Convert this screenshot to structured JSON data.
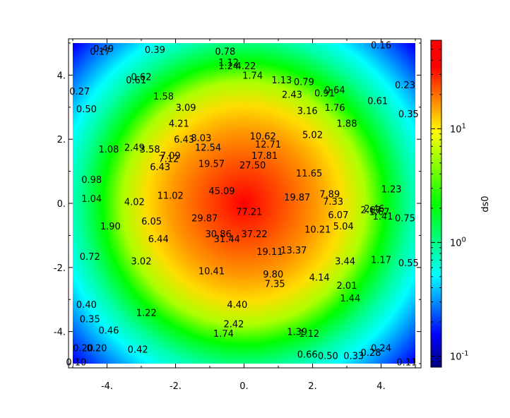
{
  "chart_data": {
    "type": "heatmap",
    "title": "",
    "xlabel": "",
    "ylabel": "",
    "colorbar_label": "ds0",
    "colorbar_scale": "log",
    "colorbar_range": [
      0.08,
      60
    ],
    "colormap": [
      "#00007f",
      "#0000ff",
      "#00ffff",
      "#00ff00",
      "#ffff00",
      "#ff0000",
      "#ff0000"
    ],
    "xlim": [
      -5,
      5
    ],
    "ylim": [
      -5,
      5
    ],
    "field_center": [
      0,
      0
    ],
    "x_ticks": [
      {
        "value": -4,
        "label": "-4."
      },
      {
        "value": -2,
        "label": "-2."
      },
      {
        "value": 0,
        "label": "0."
      },
      {
        "value": 2,
        "label": "2."
      },
      {
        "value": 4,
        "label": "4."
      }
    ],
    "y_ticks": [
      {
        "value": -4,
        "label": "-4."
      },
      {
        "value": -2,
        "label": "-2."
      },
      {
        "value": 0,
        "label": "0."
      },
      {
        "value": 2,
        "label": "2."
      },
      {
        "value": 4,
        "label": "4."
      }
    ],
    "colorbar_ticks": [
      {
        "value": 10,
        "base": "10",
        "exp": "1"
      },
      {
        "value": 1,
        "base": "10",
        "exp": "0"
      },
      {
        "value": 0.1,
        "base": "10",
        "exp": "-1"
      }
    ],
    "points": [
      {
        "x": -4.1,
        "y": 4.84,
        "label": "0.49"
      },
      {
        "x": -4.2,
        "y": 4.75,
        "label": "0.17"
      },
      {
        "x": -2.6,
        "y": 4.8,
        "label": "0.39"
      },
      {
        "x": -0.55,
        "y": 4.75,
        "label": "0.78"
      },
      {
        "x": -0.45,
        "y": 4.4,
        "label": "1.12"
      },
      {
        "x": -0.45,
        "y": 4.3,
        "label": "1.24"
      },
      {
        "x": 0.05,
        "y": 4.3,
        "label": "4.22"
      },
      {
        "x": 0.25,
        "y": 4.0,
        "label": "1.74"
      },
      {
        "x": 1.75,
        "y": 3.8,
        "label": "0.79"
      },
      {
        "x": 1.1,
        "y": 3.85,
        "label": "1.13"
      },
      {
        "x": -3.0,
        "y": 3.95,
        "label": "0.62"
      },
      {
        "x": -3.15,
        "y": 3.85,
        "label": "0.61"
      },
      {
        "x": -4.8,
        "y": 3.5,
        "label": "0.27"
      },
      {
        "x": -2.35,
        "y": 3.35,
        "label": "1.58"
      },
      {
        "x": 1.4,
        "y": 3.4,
        "label": "2.43"
      },
      {
        "x": 2.65,
        "y": 3.55,
        "label": "0.64"
      },
      {
        "x": 2.35,
        "y": 3.45,
        "label": "0.91"
      },
      {
        "x": 3.9,
        "y": 3.2,
        "label": "0.61"
      },
      {
        "x": 4.7,
        "y": 3.7,
        "label": "0.23"
      },
      {
        "x": -4.6,
        "y": 2.95,
        "label": "0.50"
      },
      {
        "x": -1.7,
        "y": 3.0,
        "label": "3.09"
      },
      {
        "x": 1.85,
        "y": 2.9,
        "label": "3.16"
      },
      {
        "x": 2.65,
        "y": 3.0,
        "label": "1.76"
      },
      {
        "x": 4.8,
        "y": 2.8,
        "label": "0.35"
      },
      {
        "x": -1.9,
        "y": 2.5,
        "label": "4.21"
      },
      {
        "x": 3.0,
        "y": 2.5,
        "label": "1.88"
      },
      {
        "x": -1.25,
        "y": 2.05,
        "label": "8.03"
      },
      {
        "x": -1.75,
        "y": 2.0,
        "label": "6.43"
      },
      {
        "x": 0.55,
        "y": 2.1,
        "label": "10.62"
      },
      {
        "x": 2.0,
        "y": 2.15,
        "label": "5.02"
      },
      {
        "x": 0.7,
        "y": 1.85,
        "label": "12.71"
      },
      {
        "x": -3.95,
        "y": 1.7,
        "label": "1.08"
      },
      {
        "x": -3.2,
        "y": 1.75,
        "label": "2.49"
      },
      {
        "x": -2.75,
        "y": 1.7,
        "label": "3.58"
      },
      {
        "x": -1.05,
        "y": 1.75,
        "label": "12.54"
      },
      {
        "x": 0.6,
        "y": 1.5,
        "label": "17.81"
      },
      {
        "x": -2.15,
        "y": 1.5,
        "label": "7.09"
      },
      {
        "x": -2.2,
        "y": 1.4,
        "label": "7.12"
      },
      {
        "x": -0.95,
        "y": 1.25,
        "label": "19.57"
      },
      {
        "x": 0.25,
        "y": 1.2,
        "label": "27.50"
      },
      {
        "x": -2.45,
        "y": 1.15,
        "label": "6.43"
      },
      {
        "x": 1.9,
        "y": 0.95,
        "label": "11.65"
      },
      {
        "x": -4.45,
        "y": 0.75,
        "label": "0.98"
      },
      {
        "x": 4.3,
        "y": 0.45,
        "label": "1.23"
      },
      {
        "x": -0.65,
        "y": 0.4,
        "label": "45.09"
      },
      {
        "x": -2.15,
        "y": 0.25,
        "label": "11.02"
      },
      {
        "x": 2.5,
        "y": 0.3,
        "label": "7.89"
      },
      {
        "x": 1.55,
        "y": 0.2,
        "label": "19.87"
      },
      {
        "x": -4.45,
        "y": 0.15,
        "label": "1.04"
      },
      {
        "x": -3.2,
        "y": 0.05,
        "label": "4.02"
      },
      {
        "x": 2.6,
        "y": 0.07,
        "label": "7.33"
      },
      {
        "x": 0.15,
        "y": -0.25,
        "label": "77.21"
      },
      {
        "x": 3.8,
        "y": -0.15,
        "label": "2.46"
      },
      {
        "x": 3.7,
        "y": -0.2,
        "label": "2.67"
      },
      {
        "x": 3.95,
        "y": -0.25,
        "label": "1.67"
      },
      {
        "x": 4.05,
        "y": -0.4,
        "label": "1.41"
      },
      {
        "x": 4.7,
        "y": -0.45,
        "label": "0.75"
      },
      {
        "x": 2.75,
        "y": -0.35,
        "label": "6.07"
      },
      {
        "x": -1.15,
        "y": -0.45,
        "label": "29.87"
      },
      {
        "x": -2.7,
        "y": -0.55,
        "label": "6.05"
      },
      {
        "x": -3.9,
        "y": -0.7,
        "label": "1.90"
      },
      {
        "x": 2.9,
        "y": -0.7,
        "label": "5.04"
      },
      {
        "x": 2.15,
        "y": -0.8,
        "label": "10.21"
      },
      {
        "x": -0.75,
        "y": -0.95,
        "label": "30.86"
      },
      {
        "x": 0.3,
        "y": -0.95,
        "label": "37.22"
      },
      {
        "x": -0.5,
        "y": -1.1,
        "label": "31.44"
      },
      {
        "x": -2.5,
        "y": -1.1,
        "label": "6.44"
      },
      {
        "x": 1.45,
        "y": -1.45,
        "label": "13.37"
      },
      {
        "x": 0.75,
        "y": -1.5,
        "label": "19.11"
      },
      {
        "x": -4.5,
        "y": -1.65,
        "label": "0.72"
      },
      {
        "x": 2.95,
        "y": -1.8,
        "label": "3.44"
      },
      {
        "x": 4.0,
        "y": -1.75,
        "label": "1.17"
      },
      {
        "x": 4.8,
        "y": -1.85,
        "label": "0.55"
      },
      {
        "x": -3.0,
        "y": -1.8,
        "label": "3.02"
      },
      {
        "x": -0.95,
        "y": -2.1,
        "label": "10.41"
      },
      {
        "x": 0.85,
        "y": -2.2,
        "label": "9.80"
      },
      {
        "x": 2.2,
        "y": -2.3,
        "label": "4.14"
      },
      {
        "x": 0.9,
        "y": -2.5,
        "label": "7.35"
      },
      {
        "x": 3.0,
        "y": -2.55,
        "label": "2.01"
      },
      {
        "x": 3.1,
        "y": -2.95,
        "label": "1.44"
      },
      {
        "x": -4.6,
        "y": -3.15,
        "label": "0.40"
      },
      {
        "x": -0.2,
        "y": -3.15,
        "label": "4.40"
      },
      {
        "x": -2.85,
        "y": -3.4,
        "label": "1.22"
      },
      {
        "x": -4.5,
        "y": -3.6,
        "label": "0.35"
      },
      {
        "x": -0.3,
        "y": -3.75,
        "label": "2.42"
      },
      {
        "x": -3.95,
        "y": -3.95,
        "label": "0.46"
      },
      {
        "x": -0.6,
        "y": -4.05,
        "label": "1.74"
      },
      {
        "x": 1.55,
        "y": -4.0,
        "label": "1.39"
      },
      {
        "x": 1.9,
        "y": -4.05,
        "label": "1.12"
      },
      {
        "x": -4.7,
        "y": -4.5,
        "label": "0.20"
      },
      {
        "x": -4.3,
        "y": -4.5,
        "label": "0.20"
      },
      {
        "x": -3.1,
        "y": -4.55,
        "label": "0.42"
      },
      {
        "x": 1.85,
        "y": -4.7,
        "label": "0.66"
      },
      {
        "x": 2.45,
        "y": -4.75,
        "label": "0.50"
      },
      {
        "x": 3.2,
        "y": -4.75,
        "label": "0.33"
      },
      {
        "x": 3.7,
        "y": -4.65,
        "label": "0.28"
      },
      {
        "x": 4.0,
        "y": -4.5,
        "label": "0.24"
      },
      {
        "x": -4.9,
        "y": -4.95,
        "label": "0.10"
      },
      {
        "x": 4.75,
        "y": -4.95,
        "label": "0.11"
      },
      {
        "x": 4.0,
        "y": 4.95,
        "label": "0.16"
      }
    ]
  }
}
